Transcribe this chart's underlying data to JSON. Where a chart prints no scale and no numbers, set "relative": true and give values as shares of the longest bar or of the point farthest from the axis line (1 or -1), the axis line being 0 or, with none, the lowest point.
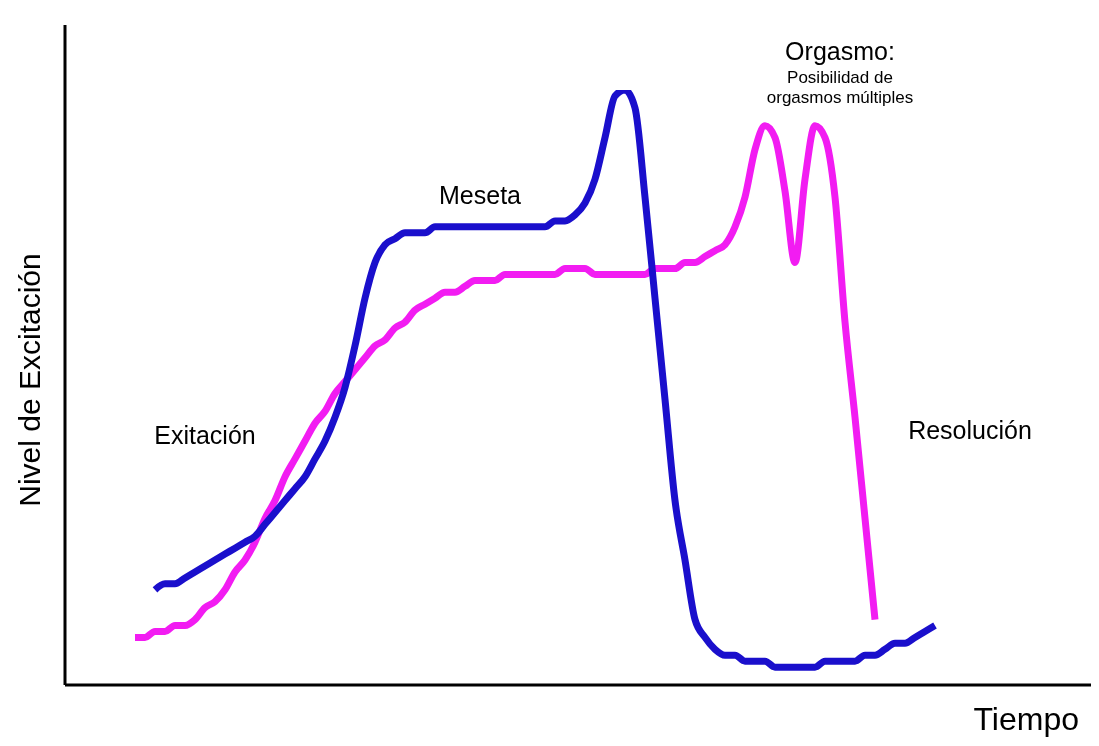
{
  "chart_data": {
    "type": "line",
    "relative": true,
    "xlabel": "Tiempo",
    "ylabel": "Nivel de Excitación",
    "annotations": [
      "Exitación",
      "Meseta",
      "Orgasmo:",
      "Posibilidad de orgasmos múltiples",
      "Resolución"
    ],
    "categories": [
      null,
      null,
      null,
      null,
      null,
      null,
      null,
      null,
      null,
      null,
      null,
      null,
      null,
      null,
      null,
      null,
      null,
      null,
      null,
      null,
      null,
      null,
      null,
      null,
      null,
      null,
      null,
      null,
      null,
      null,
      null,
      null,
      null,
      null,
      null,
      null,
      null,
      null,
      null,
      null,
      null,
      null,
      null,
      null,
      null,
      null,
      null,
      null,
      null,
      null,
      null,
      null,
      null,
      null,
      null,
      null,
      null,
      null,
      null,
      null,
      null,
      null,
      null,
      null,
      null,
      null,
      null,
      null,
      null,
      null,
      null,
      null,
      null,
      null,
      null,
      null,
      null,
      null,
      null,
      null,
      null
    ],
    "series": [
      {
        "color": "#f21cf2",
        "values": [
          0.08,
          0.08,
          0.09,
          0.09,
          0.1,
          0.1,
          0.11,
          0.13,
          0.14,
          0.16,
          0.19,
          0.21,
          0.24,
          0.28,
          0.31,
          0.35,
          0.38,
          0.41,
          0.44,
          0.46,
          0.49,
          0.51,
          0.53,
          0.55,
          0.57,
          0.58,
          0.6,
          0.61,
          0.63,
          0.64,
          0.65,
          0.66,
          0.66,
          0.67,
          0.68,
          0.68,
          0.68,
          0.69,
          0.69,
          0.69,
          0.69,
          0.69,
          0.69,
          0.7,
          0.7,
          0.7,
          0.69,
          0.69,
          0.69,
          0.69,
          0.69,
          0.69,
          0.7,
          0.7,
          0.7,
          0.71,
          0.71,
          0.72,
          0.73,
          0.74,
          0.77,
          0.82,
          0.9,
          0.94,
          0.92,
          0.83,
          0.71,
          0.85,
          0.94,
          0.92,
          0.82,
          0.61,
          0.45,
          0.28,
          0.11,
          null,
          null,
          null,
          null,
          null,
          null
        ]
      },
      {
        "color": "#1a0fcc",
        "values": [
          null,
          null,
          0.16,
          0.17,
          0.17,
          0.18,
          0.19,
          0.2,
          0.21,
          0.22,
          0.23,
          0.24,
          0.25,
          0.27,
          0.29,
          0.31,
          0.33,
          0.35,
          0.38,
          0.41,
          0.45,
          0.5,
          0.57,
          0.65,
          0.71,
          0.74,
          0.75,
          0.76,
          0.76,
          0.76,
          0.77,
          0.77,
          0.77,
          0.77,
          0.77,
          0.77,
          0.77,
          0.77,
          0.77,
          0.77,
          0.77,
          0.77,
          0.78,
          0.78,
          0.79,
          0.81,
          0.85,
          0.92,
          0.99,
          1,
          0.97,
          0.82,
          0.65,
          0.48,
          0.31,
          0.21,
          0.11,
          0.08,
          0.06,
          0.05,
          0.05,
          0.04,
          0.04,
          0.04,
          0.03,
          0.03,
          0.03,
          0.03,
          0.03,
          0.04,
          0.04,
          0.04,
          0.04,
          0.05,
          0.05,
          0.06,
          0.07,
          0.07,
          0.08,
          0.09,
          0.1
        ]
      }
    ]
  }
}
